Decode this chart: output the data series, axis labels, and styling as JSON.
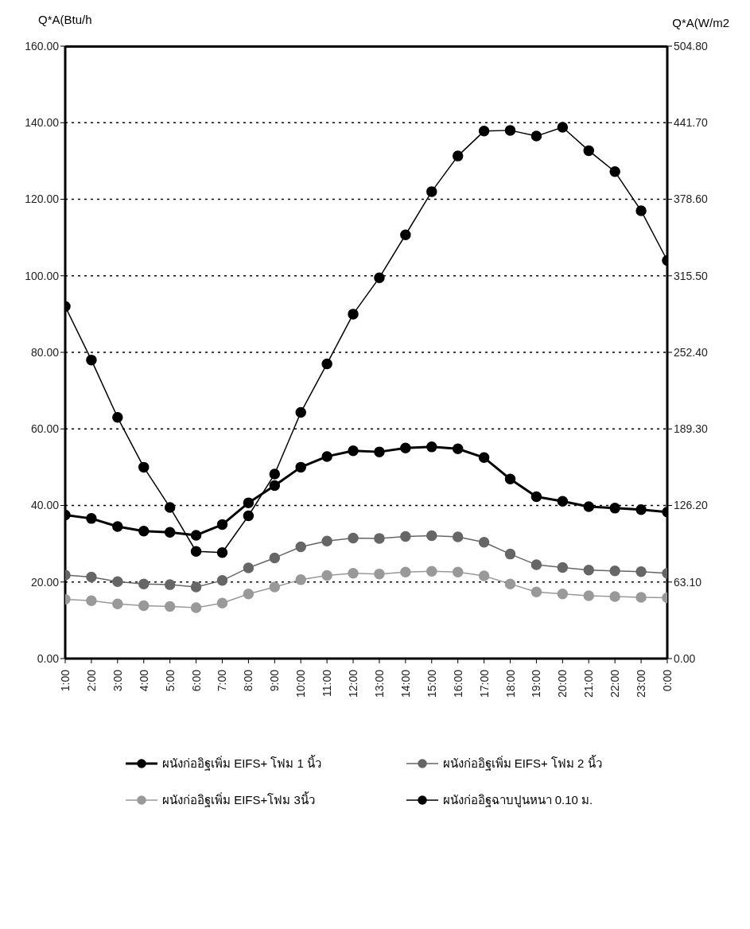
{
  "chart_data": {
    "type": "line",
    "ylabel": "Q*A(Btu/h",
    "y2label": "Q*A(W/m2",
    "categories": [
      "1:00",
      "2:00",
      "3:00",
      "4:00",
      "5:00",
      "6:00",
      "7:00",
      "8:00",
      "9:00",
      "10:00",
      "11:00",
      "12:00",
      "13:00",
      "14:00",
      "15:00",
      "16:00",
      "17:00",
      "18:00",
      "19:00",
      "20:00",
      "21:00",
      "22:00",
      "23:00",
      "0:00"
    ],
    "series": [
      {
        "name": "ผนังก่ออิฐเพิ่ม EIFS+ โฟม 1 นิ้ว",
        "color": "#000000",
        "values": [
          37.5,
          36.6,
          34.5,
          33.3,
          33,
          32.2,
          35,
          40.7,
          45.2,
          50,
          52.8,
          54.3,
          54,
          55,
          55.3,
          54.8,
          52.5,
          46.9,
          42.3,
          41.1,
          39.7,
          39.3,
          38.9,
          38.3
        ]
      },
      {
        "name": "ผนังก่ออิฐเพิ่ม EIFS+ โฟม 2 นิ้ว",
        "color": "#666666",
        "values": [
          21.8,
          21.3,
          20.1,
          19.5,
          19.3,
          18.7,
          20.4,
          23.7,
          26.3,
          29.2,
          30.7,
          31.5,
          31.4,
          31.9,
          32.1,
          31.8,
          30.4,
          27.3,
          24.5,
          23.8,
          23.1,
          22.9,
          22.7,
          22.3
        ]
      },
      {
        "name": "ผนังก่ออิฐเพิ่ม EIFS+โฟม 3นิ้ว",
        "color": "#999999",
        "values": [
          15.5,
          15.1,
          14.3,
          13.8,
          13.6,
          13.3,
          14.5,
          16.9,
          18.7,
          20.6,
          21.7,
          22.3,
          22.1,
          22.6,
          22.8,
          22.6,
          21.6,
          19.5,
          17.4,
          16.9,
          16.4,
          16.2,
          16,
          15.9
        ]
      },
      {
        "name": "ผนังก่ออิฐฉาบปูนหนา 0.10 ม.",
        "color": "#000000",
        "values": [
          92,
          78,
          63,
          50,
          39.5,
          28,
          27.7,
          37.3,
          48.2,
          64.3,
          77,
          90,
          99.5,
          110.7,
          122,
          131.3,
          137.8,
          138,
          136.5,
          138.8,
          132.7,
          127.2,
          117,
          104
        ]
      }
    ],
    "ylim": [
      0,
      160
    ],
    "yticks": [
      {
        "value": 0,
        "label": "0.00"
      },
      {
        "value": 20,
        "label": "20.00"
      },
      {
        "value": 40,
        "label": "40.00"
      },
      {
        "value": 60,
        "label": "60.00"
      },
      {
        "value": 80,
        "label": "80.00"
      },
      {
        "value": 100,
        "label": "100.00"
      },
      {
        "value": 120,
        "label": "120.00"
      },
      {
        "value": 140,
        "label": "140.00"
      },
      {
        "value": 160,
        "label": "160.00"
      }
    ],
    "y2lim": [
      0,
      504.8
    ],
    "y2ticks": [
      {
        "value": 0,
        "label": "0.00"
      },
      {
        "value": 63.1,
        "label": "63.10"
      },
      {
        "value": 126.2,
        "label": "126.20"
      },
      {
        "value": 189.3,
        "label": "189.30"
      },
      {
        "value": 252.4,
        "label": "252.40"
      },
      {
        "value": 315.5,
        "label": "315.50"
      },
      {
        "value": 378.6,
        "label": "378.60"
      },
      {
        "value": 441.7,
        "label": "441.70"
      },
      {
        "value": 504.8,
        "label": "504.80"
      }
    ],
    "grid": "y",
    "legend": "bottom",
    "marker": "circle",
    "line_style": "solid"
  }
}
